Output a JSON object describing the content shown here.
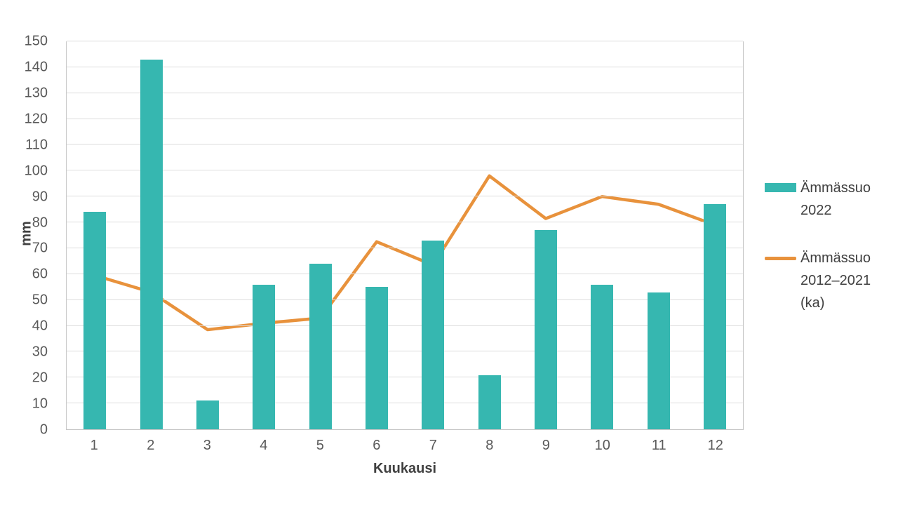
{
  "chart_data": {
    "type": "bar+line",
    "title": "",
    "xlabel": "Kuukausi",
    "ylabel": "mm",
    "categories": [
      "1",
      "2",
      "3",
      "4",
      "5",
      "6",
      "7",
      "8",
      "9",
      "10",
      "11",
      "12"
    ],
    "y_ticks": [
      0,
      10,
      20,
      30,
      40,
      50,
      60,
      70,
      80,
      90,
      100,
      110,
      120,
      130,
      140,
      150
    ],
    "ylim": [
      0,
      150
    ],
    "grid": true,
    "legend_position": "right",
    "series": [
      {
        "name": "Ämmässuo 2022",
        "type": "bar",
        "color": "#36b7b0",
        "values": [
          84,
          143,
          11,
          56,
          64,
          55,
          73,
          21,
          77,
          56,
          53,
          87
        ]
      },
      {
        "name": "Ämmässuo 2012–2021 (ka)",
        "type": "line",
        "color": "#e8923c",
        "values": [
          59.5,
          53,
          38.5,
          41,
          43,
          72.5,
          63.5,
          98,
          81.5,
          90,
          87,
          79
        ]
      }
    ]
  },
  "colors": {
    "gridline": "#dcdcdc",
    "axis_line": "#c6c6c6",
    "tick_text": "#595959",
    "label_text": "#404040",
    "background": "#ffffff"
  }
}
